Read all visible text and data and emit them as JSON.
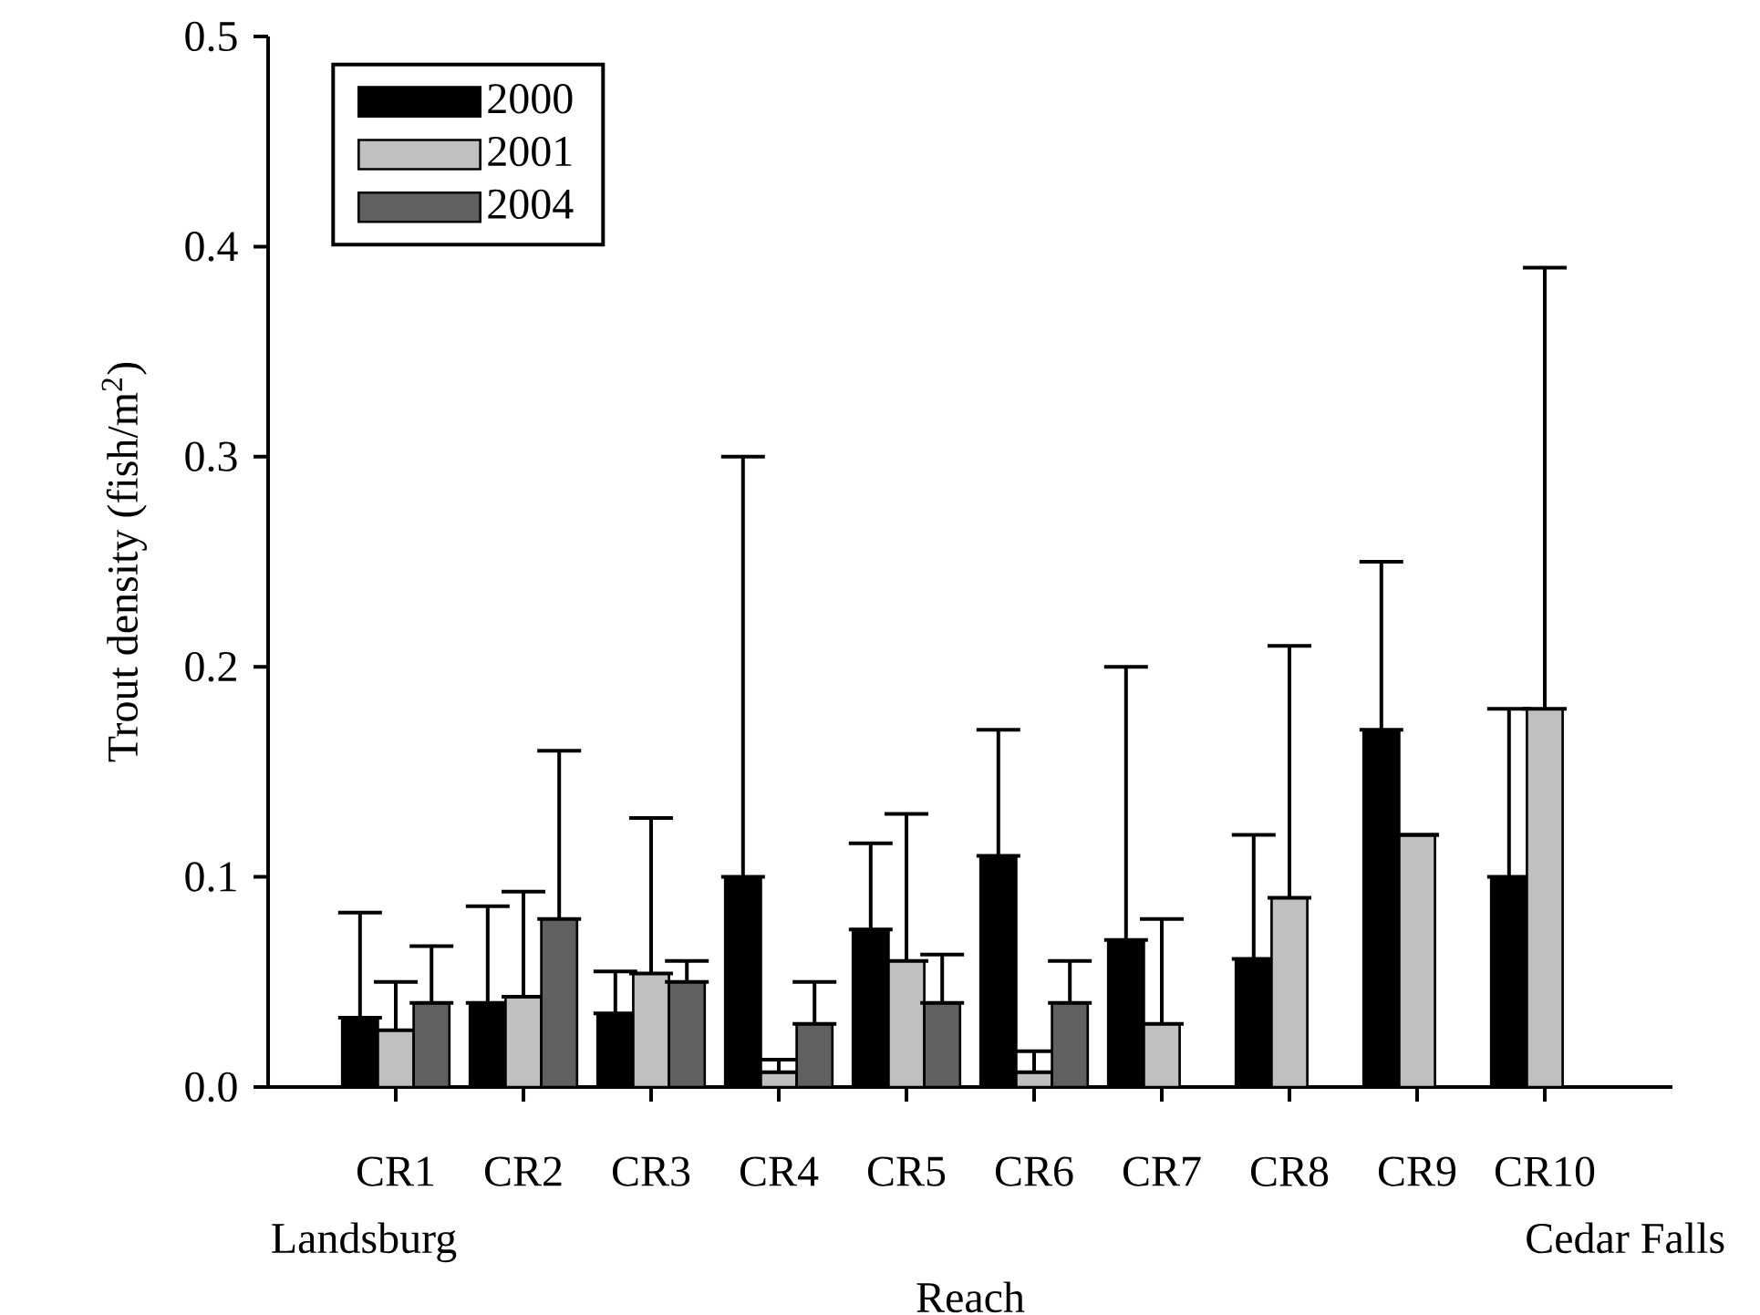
{
  "chart_data": {
    "type": "bar",
    "xlabel": "Reach",
    "ylabel": "Trout density (fish/m$^{2}$)",
    "categories": [
      "CR1",
      "CR2",
      "CR3",
      "CR4",
      "CR5",
      "CR6",
      "CR7",
      "CR8",
      "CR9",
      "CR10"
    ],
    "series": [
      {
        "name": "2000",
        "color": "#000000",
        "values": [
          0.033,
          0.04,
          0.035,
          0.1,
          0.075,
          0.11,
          0.07,
          0.061,
          0.17,
          0.1
        ],
        "errors": [
          [
            0.033,
            0.083
          ],
          [
            0.04,
            0.086
          ],
          [
            0.035,
            0.055
          ],
          [
            0.1,
            0.3
          ],
          [
            0.075,
            0.116
          ],
          [
            0.11,
            0.17
          ],
          [
            0.07,
            0.2
          ],
          [
            0.061,
            0.12
          ],
          [
            0.17,
            0.25
          ],
          [
            0.1,
            0.18
          ]
        ]
      },
      {
        "name": "2001",
        "color": "#c0c0c0",
        "values": [
          0.027,
          0.043,
          0.054,
          0.007,
          0.06,
          0.007,
          0.03,
          0.09,
          0.12,
          0.18
        ],
        "errors": [
          [
            0.027,
            0.05
          ],
          [
            0.043,
            0.093
          ],
          [
            0.054,
            0.128
          ],
          [
            0.007,
            0.013
          ],
          [
            0.06,
            0.13
          ],
          [
            0.007,
            0.017
          ],
          [
            0.03,
            0.08
          ],
          [
            0.09,
            0.21
          ],
          null,
          [
            0.18,
            0.39
          ]
        ]
      },
      {
        "name": "2004",
        "color": "#606060",
        "values": [
          0.04,
          0.08,
          0.05,
          0.03,
          0.04,
          0.04,
          null,
          null,
          null,
          null
        ],
        "errors": [
          [
            0.04,
            0.067
          ],
          [
            0.08,
            0.16
          ],
          [
            0.05,
            0.06
          ],
          [
            0.03,
            0.05
          ],
          [
            0.04,
            0.063
          ],
          [
            0.04,
            0.06
          ],
          null,
          null,
          null,
          null
        ]
      }
    ],
    "ylim": [
      0,
      0.5
    ],
    "yticks": [
      {
        "value": 0,
        "label": "0.0"
      },
      0.1,
      0.2,
      0.3,
      0.4,
      0.5
    ],
    "legend": "top left",
    "annotations": [
      "Landsburg",
      "Cedar Falls"
    ]
  }
}
